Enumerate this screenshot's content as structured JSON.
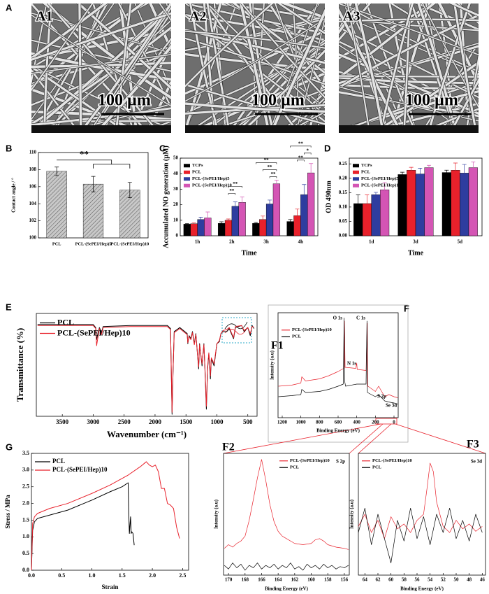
{
  "figure": {
    "panel_a": {
      "label": "A",
      "images": [
        {
          "label": "A1",
          "scale_label": "100 µm"
        },
        {
          "label": "A2",
          "scale_label": "100 µm"
        },
        {
          "label": "A3",
          "scale_label": "100 µm"
        }
      ]
    },
    "panel_f_label": "F"
  },
  "chart_data": [
    {
      "panel": "B",
      "type": "bar",
      "categories": [
        "PCL",
        "PCL-(SePEI/Hep)5",
        "PCL-(SePEI/Hep)10"
      ],
      "values": [
        107.8,
        106.3,
        105.6
      ],
      "errors": [
        0.5,
        0.9,
        0.9
      ],
      "color": "#c8c8c8",
      "y_label": "Contact angle / °",
      "ylim": [
        100,
        110
      ],
      "yticks": [
        100,
        102,
        104,
        106,
        108,
        110
      ],
      "annotations": [
        "**"
      ]
    },
    {
      "panel": "C",
      "type": "bar",
      "categories": [
        "1h",
        "2h",
        "3h",
        "4h"
      ],
      "series": [
        {
          "name": "TCPs",
          "color": "#000000",
          "values": [
            7.5,
            8,
            8,
            9.2
          ],
          "errors": [
            0.4,
            1,
            0.6,
            1.2
          ]
        },
        {
          "name": "PCL",
          "color": "#e8212b",
          "values": [
            7.8,
            10,
            10.5,
            13
          ],
          "errors": [
            0.5,
            0.8,
            2.2,
            4.2
          ]
        },
        {
          "name": "PCL-(SePEI/Hep)5",
          "color": "#2e3d9f",
          "values": [
            10.5,
            19,
            20.5,
            26.5
          ],
          "errors": [
            1.5,
            2.8,
            2.5,
            6.5
          ]
        },
        {
          "name": "PCL-(SePEI/Hep)10",
          "color": "#d455b4",
          "values": [
            11.5,
            21.5,
            33.5,
            40.5
          ],
          "errors": [
            3.8,
            3.5,
            2.3,
            6
          ]
        }
      ],
      "x_label": "Time",
      "y_label": "Accumulated NO generation (µM)",
      "ylim": [
        0,
        50
      ],
      "yticks": [
        0,
        10,
        20,
        30,
        40,
        50
      ],
      "legend": "upper-left",
      "annotations": [
        "**",
        "**",
        "**",
        "**",
        "**",
        "**",
        "*",
        "**"
      ]
    },
    {
      "panel": "D",
      "type": "bar",
      "categories": [
        "1d",
        "3d",
        "5d"
      ],
      "series": [
        {
          "name": "TCPs",
          "color": "#000000",
          "values": [
            0.112,
            0.213,
            0.22
          ],
          "errors": [
            0.03,
            0.008,
            0.008
          ]
        },
        {
          "name": "PCL",
          "color": "#e8212b",
          "values": [
            0.112,
            0.228,
            0.228
          ],
          "errors": [
            0.03,
            0.01,
            0.025
          ]
        },
        {
          "name": "PCL-(SePEI/Hep)5",
          "color": "#2e3d9f",
          "values": [
            0.143,
            0.215,
            0.218
          ],
          "errors": [
            0.008,
            0.02,
            0.03
          ]
        },
        {
          "name": "PCL-(SePEI/Hep)10",
          "color": "#d455b4",
          "values": [
            0.16,
            0.237,
            0.237
          ],
          "errors": [
            0.025,
            0.008,
            0.02
          ]
        }
      ],
      "x_label": "Time",
      "y_label": "OD 490nm",
      "ylim": [
        0,
        0.27
      ],
      "yticks": [
        {
          "value": 0,
          "label": "0.00"
        },
        0.05,
        {
          "value": 0.1,
          "label": "0.10"
        },
        0.15,
        {
          "value": 0.2,
          "label": "0.20"
        },
        0.25
      ],
      "legend": "upper-left"
    },
    {
      "panel": "E",
      "type": "line",
      "x_label": "Wavenumber (cm⁻¹)",
      "y_label": "Transmittance (%)",
      "xlim": [
        3920,
        350
      ],
      "ylim": [
        -2,
        100
      ],
      "xticks": [
        3500,
        3000,
        2500,
        2000,
        1500,
        1000,
        500
      ],
      "legend": "upper-left",
      "series": [
        {
          "name": "PCL",
          "color": "#000000",
          "x": [
            3900,
            3000,
            2960,
            2945,
            2935,
            2900,
            2865,
            2840,
            2400,
            1800,
            1750,
            1725,
            1710,
            1690,
            1600,
            1480,
            1470,
            1450,
            1420,
            1395,
            1365,
            1340,
            1295,
            1280,
            1240,
            1210,
            1190,
            1170,
            1150,
            1130,
            1105,
            1090,
            1045,
            1000,
            960,
            935,
            900,
            840,
            800,
            730,
            700,
            600,
            560,
            500,
            460,
            430,
            400
          ],
          "values": [
            89,
            89,
            86,
            74,
            77,
            86,
            81,
            87,
            88,
            88,
            85,
            0,
            40,
            82,
            86,
            80,
            70,
            78,
            75,
            82,
            70,
            80,
            45,
            70,
            48,
            70,
            40,
            5,
            45,
            60,
            35,
            55,
            48,
            70,
            72,
            80,
            82,
            82,
            85,
            75,
            86,
            88,
            82,
            86,
            78,
            88,
            85
          ]
        },
        {
          "name": "PCL-(SePEI/Hep)10",
          "color": "#e8212b",
          "x": [
            3900,
            3000,
            2960,
            2945,
            2935,
            2900,
            2865,
            2840,
            2400,
            1800,
            1750,
            1725,
            1710,
            1690,
            1600,
            1480,
            1470,
            1450,
            1420,
            1395,
            1365,
            1340,
            1295,
            1280,
            1240,
            1210,
            1190,
            1170,
            1150,
            1130,
            1105,
            1090,
            1045,
            1000,
            960,
            935,
            900,
            840,
            800,
            730,
            700,
            600,
            560,
            500,
            460,
            430,
            400
          ],
          "values": [
            88,
            88,
            85,
            68,
            72,
            85,
            79,
            86,
            87,
            87,
            84,
            2,
            42,
            81,
            85,
            79,
            71,
            77,
            74,
            81,
            69,
            79,
            47,
            69,
            50,
            69,
            42,
            8,
            47,
            61,
            38,
            56,
            50,
            70,
            73,
            80,
            83,
            84,
            86,
            76,
            87,
            88,
            83,
            86,
            80,
            87,
            86
          ]
        }
      ]
    },
    {
      "panel": "F1",
      "type": "line",
      "x_label": "Binding Energy (eV)",
      "y_label": "Intensity (a.u)",
      "xlim": [
        1245,
        -45
      ],
      "ylim": [
        0,
        100
      ],
      "xticks": [
        1200,
        1000,
        800,
        600,
        400,
        200,
        0
      ],
      "legend": "upper-left",
      "annotations": [
        "O 1s",
        "C 1s",
        "N 1s",
        "S 2p",
        "Se 3d"
      ],
      "series": [
        {
          "name": "PCL-(SePEI/Hep)10",
          "color": "#e8212b",
          "x": [
            1240,
            1100,
            1000,
            990,
            950,
            800,
            700,
            600,
            540,
            532,
            525,
            410,
            400,
            395,
            300,
            287,
            280,
            200,
            165,
            100,
            55,
            0,
            -40
          ],
          "values": [
            30,
            31,
            33,
            39,
            35,
            37,
            40,
            44,
            47,
            92,
            48,
            47,
            52,
            46,
            45,
            90,
            30,
            25,
            30,
            20,
            22,
            20,
            19
          ]
        },
        {
          "name": "PCL",
          "color": "#000000",
          "x": [
            1240,
            1100,
            1000,
            990,
            950,
            800,
            700,
            600,
            545,
            535,
            530,
            520,
            400,
            300,
            290,
            285,
            200,
            165,
            100,
            60,
            0,
            -40
          ],
          "values": [
            20,
            21,
            22,
            27,
            24,
            25,
            27,
            30,
            32,
            95,
            35,
            30,
            32,
            32,
            92,
            24,
            20,
            22,
            16,
            15,
            14,
            13
          ]
        }
      ]
    },
    {
      "panel": "F2",
      "type": "line",
      "x_label": "Binding Energy (eV)",
      "y_label": "Intensity (a.u)",
      "xlim": [
        170.6,
        155.4
      ],
      "ylim": [
        0,
        100
      ],
      "xticks": [
        170,
        168,
        166,
        164,
        162,
        160,
        158,
        156
      ],
      "legend": "upper-right",
      "annotations": [
        "S 2p"
      ],
      "series": [
        {
          "name": "PCL-(SePEI/Hep)10",
          "color": "#e8212b",
          "x": [
            170.5,
            170,
            169.5,
            169,
            168.5,
            168,
            167.5,
            167,
            166.5,
            166,
            165.5,
            165,
            164.5,
            164,
            163.5,
            163,
            162,
            161,
            160,
            159.5,
            159,
            158.5,
            158,
            157,
            156,
            155.5
          ],
          "values": [
            22,
            25,
            23,
            26,
            28,
            32,
            45,
            62,
            80,
            95,
            78,
            58,
            44,
            36,
            32,
            30,
            26,
            25,
            26,
            29,
            30,
            28,
            25,
            23,
            22,
            21
          ]
        },
        {
          "name": "PCL",
          "color": "#000000",
          "x": [
            170.5,
            170,
            169.5,
            169,
            168.5,
            168,
            167.5,
            167,
            166.5,
            166,
            165.5,
            165,
            164.5,
            164,
            163.5,
            163,
            162.5,
            162,
            161.5,
            161,
            160.5,
            160,
            159.5,
            159,
            158.5,
            158,
            157.5,
            157,
            156.5,
            156,
            155.5
          ],
          "values": [
            8,
            5,
            10,
            6,
            9,
            4,
            8,
            6,
            10,
            5,
            8,
            6,
            9,
            5,
            8,
            6,
            10,
            5,
            7,
            4,
            9,
            6,
            8,
            5,
            9,
            6,
            8,
            5,
            7,
            6,
            8
          ]
        }
      ]
    },
    {
      "panel": "F3",
      "type": "line",
      "x_label": "Binding Energy (eV)",
      "y_label": "Intensity (a.u)",
      "xlim": [
        65,
        45.5
      ],
      "ylim": [
        0,
        100
      ],
      "xticks": [
        64,
        62,
        60,
        58,
        56,
        54,
        52,
        50,
        48,
        46
      ],
      "legend": "upper-left",
      "annotations": [
        "Se 3d"
      ],
      "series": [
        {
          "name": "PCL-(SePEI/Hep)10",
          "color": "#e8212b",
          "x": [
            65,
            64,
            63,
            62,
            61,
            60,
            59,
            58,
            57,
            56,
            55,
            54.5,
            54,
            53.5,
            53,
            52,
            51,
            50,
            49,
            48,
            47,
            46
          ],
          "values": [
            40,
            50,
            35,
            45,
            30,
            48,
            38,
            42,
            35,
            45,
            50,
            70,
            92,
            85,
            60,
            40,
            35,
            45,
            38,
            42,
            36,
            40
          ]
        },
        {
          "name": "PCL",
          "color": "#000000",
          "x": [
            65,
            64,
            63,
            62,
            61,
            60,
            59,
            58,
            57,
            56,
            55,
            54,
            53,
            52,
            51,
            50,
            49,
            48,
            47,
            46
          ],
          "values": [
            35,
            55,
            25,
            50,
            30,
            10,
            45,
            28,
            55,
            30,
            48,
            25,
            50,
            35,
            55,
            30,
            45,
            28,
            50,
            35
          ]
        }
      ]
    },
    {
      "panel": "G",
      "type": "line",
      "x_label": "Strain",
      "y_label": "Stress / MPa",
      "xlim": [
        0,
        2.6
      ],
      "ylim": [
        0,
        3.5
      ],
      "xticks": [
        {
          "value": 0,
          "label": "0.0"
        },
        0.5,
        {
          "value": 1,
          "label": "1.0"
        },
        1.5,
        {
          "value": 2,
          "label": "2.0"
        },
        2.5
      ],
      "yticks": [
        {
          "value": 0,
          "label": "0.0"
        },
        0.5,
        {
          "value": 1,
          "label": "1.0"
        },
        1.5,
        {
          "value": 2,
          "label": "2.0"
        },
        2.5,
        {
          "value": 3,
          "label": "3.0"
        },
        3.5
      ],
      "legend": "upper-left",
      "series": [
        {
          "name": "PCL",
          "color": "#000000",
          "x": [
            0,
            0.02,
            0.05,
            0.1,
            0.3,
            0.6,
            1.0,
            1.3,
            1.5,
            1.6,
            1.61,
            1.62,
            1.64,
            1.65,
            1.66,
            1.68,
            1.7
          ],
          "values": [
            0,
            1.2,
            1.45,
            1.55,
            1.65,
            1.8,
            2.1,
            2.35,
            2.5,
            2.62,
            1.7,
            1.1,
            1.6,
            1.1,
            1.15,
            1.1,
            0.75
          ]
        },
        {
          "name": "PCL-(SePEI/Hep)10",
          "color": "#e8212b",
          "x": [
            0,
            0.02,
            0.05,
            0.1,
            0.3,
            0.6,
            1.0,
            1.3,
            1.6,
            1.8,
            1.9,
            1.95,
            2.0,
            2.05,
            2.1,
            2.15,
            2.2,
            2.25,
            2.3,
            2.35,
            2.4,
            2.45
          ],
          "values": [
            0,
            1.4,
            1.6,
            1.7,
            1.85,
            2.0,
            2.3,
            2.55,
            2.85,
            3.1,
            3.25,
            3.15,
            3.1,
            3.15,
            2.95,
            2.45,
            2.45,
            2.0,
            1.95,
            1.85,
            1.3,
            0.95
          ]
        }
      ]
    }
  ]
}
